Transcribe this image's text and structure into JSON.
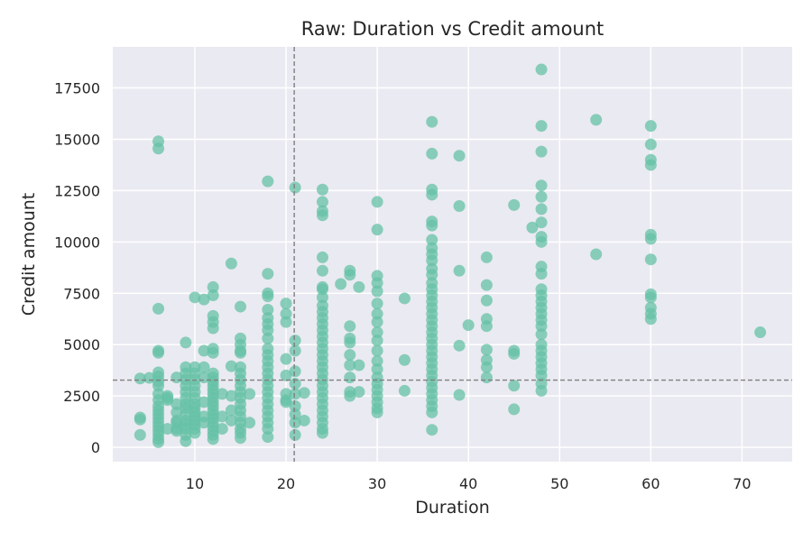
{
  "chart_data": {
    "type": "scatter",
    "title": "Raw: Duration vs Credit amount",
    "xlabel": "Duration",
    "ylabel": "Credit amount",
    "xlim": [
      1,
      75.5
    ],
    "ylim": [
      -700,
      19500
    ],
    "x_ticks": [
      10,
      20,
      30,
      40,
      50,
      60,
      70
    ],
    "y_ticks": [
      0,
      2500,
      5000,
      7500,
      10000,
      12500,
      15000,
      17500
    ],
    "x_tick_labels": [
      "10",
      "20",
      "30",
      "40",
      "50",
      "60",
      "70"
    ],
    "y_tick_labels": [
      "0",
      "2500",
      "5000",
      "7500",
      "10000",
      "12500",
      "15000",
      "17500"
    ],
    "grid": true,
    "legend": "none",
    "colors": {
      "background": "#EAEAF2",
      "grid": "#FFFFFF",
      "point": "#66C2A5",
      "reference_line": "#7F7F7F"
    },
    "reference_lines": {
      "x_mean": 20.9,
      "y_mean": 3271
    },
    "points": [
      [
        4,
        1450
      ],
      [
        4,
        1350
      ],
      [
        4,
        600
      ],
      [
        4,
        3350
      ],
      [
        5,
        3380
      ],
      [
        6,
        14900
      ],
      [
        6,
        14550
      ],
      [
        6,
        6750
      ],
      [
        6,
        4700
      ],
      [
        6,
        4600
      ],
      [
        6,
        3650
      ],
      [
        6,
        3450
      ],
      [
        6,
        3200
      ],
      [
        6,
        3000
      ],
      [
        6,
        2600
      ],
      [
        6,
        2300
      ],
      [
        6,
        2000
      ],
      [
        6,
        1800
      ],
      [
        6,
        1600
      ],
      [
        6,
        1400
      ],
      [
        6,
        1200
      ],
      [
        6,
        1000
      ],
      [
        6,
        800
      ],
      [
        6,
        600
      ],
      [
        6,
        400
      ],
      [
        6,
        250
      ],
      [
        7,
        2400
      ],
      [
        7,
        2500
      ],
      [
        7,
        2300
      ],
      [
        7,
        900
      ],
      [
        8,
        3400
      ],
      [
        8,
        2100
      ],
      [
        8,
        1700
      ],
      [
        8,
        1300
      ],
      [
        8,
        1200
      ],
      [
        8,
        900
      ],
      [
        8,
        800
      ],
      [
        9,
        5100
      ],
      [
        9,
        3900
      ],
      [
        9,
        3600
      ],
      [
        9,
        3300
      ],
      [
        9,
        3000
      ],
      [
        9,
        2700
      ],
      [
        9,
        2400
      ],
      [
        9,
        2100
      ],
      [
        9,
        1900
      ],
      [
        9,
        1600
      ],
      [
        9,
        1300
      ],
      [
        9,
        1100
      ],
      [
        9,
        900
      ],
      [
        9,
        600
      ],
      [
        9,
        300
      ],
      [
        10,
        7300
      ],
      [
        10,
        3900
      ],
      [
        10,
        3600
      ],
      [
        10,
        3300
      ],
      [
        10,
        3000
      ],
      [
        10,
        2700
      ],
      [
        10,
        2400
      ],
      [
        10,
        2100
      ],
      [
        10,
        1900
      ],
      [
        10,
        1700
      ],
      [
        10,
        1500
      ],
      [
        10,
        1300
      ],
      [
        10,
        1100
      ],
      [
        10,
        900
      ],
      [
        10,
        700
      ],
      [
        11,
        7200
      ],
      [
        11,
        4700
      ],
      [
        11,
        3900
      ],
      [
        11,
        3400
      ],
      [
        11,
        2200
      ],
      [
        11,
        1500
      ],
      [
        11,
        1200
      ],
      [
        12,
        7800
      ],
      [
        12,
        7400
      ],
      [
        12,
        6400
      ],
      [
        12,
        6100
      ],
      [
        12,
        5800
      ],
      [
        12,
        4800
      ],
      [
        12,
        4600
      ],
      [
        12,
        3600
      ],
      [
        12,
        3400
      ],
      [
        12,
        3200
      ],
      [
        12,
        3000
      ],
      [
        12,
        2800
      ],
      [
        12,
        2600
      ],
      [
        12,
        2400
      ],
      [
        12,
        2200
      ],
      [
        12,
        2000
      ],
      [
        12,
        1800
      ],
      [
        12,
        1600
      ],
      [
        12,
        1400
      ],
      [
        12,
        1200
      ],
      [
        12,
        1000
      ],
      [
        12,
        800
      ],
      [
        12,
        600
      ],
      [
        12,
        400
      ],
      [
        13,
        2600
      ],
      [
        13,
        1500
      ],
      [
        13,
        900
      ],
      [
        14,
        8950
      ],
      [
        14,
        3950
      ],
      [
        14,
        2500
      ],
      [
        14,
        1800
      ],
      [
        14,
        1300
      ],
      [
        15,
        6850
      ],
      [
        15,
        5300
      ],
      [
        15,
        5000
      ],
      [
        15,
        4700
      ],
      [
        15,
        4600
      ],
      [
        15,
        3900
      ],
      [
        15,
        3600
      ],
      [
        15,
        3300
      ],
      [
        15,
        3000
      ],
      [
        15,
        2700
      ],
      [
        15,
        2400
      ],
      [
        15,
        2100
      ],
      [
        15,
        1800
      ],
      [
        15,
        1500
      ],
      [
        15,
        1200
      ],
      [
        15,
        900
      ],
      [
        15,
        700
      ],
      [
        15,
        450
      ],
      [
        16,
        2600
      ],
      [
        16,
        1200
      ],
      [
        18,
        12950
      ],
      [
        18,
        8450
      ],
      [
        18,
        7500
      ],
      [
        18,
        7350
      ],
      [
        18,
        6700
      ],
      [
        18,
        6300
      ],
      [
        18,
        6000
      ],
      [
        18,
        5700
      ],
      [
        18,
        5300
      ],
      [
        18,
        4800
      ],
      [
        18,
        4500
      ],
      [
        18,
        4200
      ],
      [
        18,
        3900
      ],
      [
        18,
        3600
      ],
      [
        18,
        3300
      ],
      [
        18,
        3000
      ],
      [
        18,
        2700
      ],
      [
        18,
        2400
      ],
      [
        18,
        2100
      ],
      [
        18,
        1800
      ],
      [
        18,
        1500
      ],
      [
        18,
        1200
      ],
      [
        18,
        900
      ],
      [
        18,
        500
      ],
      [
        20,
        7000
      ],
      [
        20,
        6500
      ],
      [
        20,
        6100
      ],
      [
        20,
        4300
      ],
      [
        20,
        3500
      ],
      [
        20,
        2600
      ],
      [
        20,
        2300
      ],
      [
        20,
        2200
      ],
      [
        21,
        5200
      ],
      [
        21,
        4700
      ],
      [
        21,
        3700
      ],
      [
        21,
        3100
      ],
      [
        21,
        2600
      ],
      [
        21,
        2000
      ],
      [
        21,
        1600
      ],
      [
        21,
        1200
      ],
      [
        21,
        600
      ],
      [
        21,
        12650
      ],
      [
        22,
        2650
      ],
      [
        22,
        1300
      ],
      [
        24,
        12550
      ],
      [
        24,
        11950
      ],
      [
        24,
        11500
      ],
      [
        24,
        11300
      ],
      [
        24,
        9250
      ],
      [
        24,
        8600
      ],
      [
        24,
        7800
      ],
      [
        24,
        7700
      ],
      [
        24,
        7300
      ],
      [
        24,
        6900
      ],
      [
        24,
        6600
      ],
      [
        24,
        6300
      ],
      [
        24,
        6000
      ],
      [
        24,
        5700
      ],
      [
        24,
        5400
      ],
      [
        24,
        5100
      ],
      [
        24,
        4800
      ],
      [
        24,
        4500
      ],
      [
        24,
        4200
      ],
      [
        24,
        3900
      ],
      [
        24,
        3600
      ],
      [
        24,
        3300
      ],
      [
        24,
        3000
      ],
      [
        24,
        2700
      ],
      [
        24,
        2400
      ],
      [
        24,
        2100
      ],
      [
        24,
        1800
      ],
      [
        24,
        1500
      ],
      [
        24,
        1200
      ],
      [
        24,
        900
      ],
      [
        24,
        700
      ],
      [
        26,
        7950
      ],
      [
        27,
        8600
      ],
      [
        27,
        8400
      ],
      [
        27,
        5900
      ],
      [
        27,
        5300
      ],
      [
        27,
        5100
      ],
      [
        27,
        4500
      ],
      [
        27,
        4000
      ],
      [
        27,
        3400
      ],
      [
        27,
        2700
      ],
      [
        27,
        2500
      ],
      [
        28,
        7800
      ],
      [
        28,
        4000
      ],
      [
        28,
        2700
      ],
      [
        30,
        11950
      ],
      [
        30,
        10600
      ],
      [
        30,
        8350
      ],
      [
        30,
        8000
      ],
      [
        30,
        7600
      ],
      [
        30,
        7000
      ],
      [
        30,
        6500
      ],
      [
        30,
        6100
      ],
      [
        30,
        5600
      ],
      [
        30,
        5200
      ],
      [
        30,
        4700
      ],
      [
        30,
        4200
      ],
      [
        30,
        3800
      ],
      [
        30,
        3400
      ],
      [
        30,
        3100
      ],
      [
        30,
        2800
      ],
      [
        30,
        2500
      ],
      [
        30,
        2200
      ],
      [
        30,
        1900
      ],
      [
        30,
        1700
      ],
      [
        33,
        7250
      ],
      [
        33,
        4250
      ],
      [
        33,
        2750
      ],
      [
        36,
        15850
      ],
      [
        36,
        14300
      ],
      [
        36,
        12550
      ],
      [
        36,
        12300
      ],
      [
        36,
        11000
      ],
      [
        36,
        10800
      ],
      [
        36,
        10100
      ],
      [
        36,
        9700
      ],
      [
        36,
        9400
      ],
      [
        36,
        9100
      ],
      [
        36,
        8700
      ],
      [
        36,
        8400
      ],
      [
        36,
        8000
      ],
      [
        36,
        7700
      ],
      [
        36,
        7400
      ],
      [
        36,
        7100
      ],
      [
        36,
        6800
      ],
      [
        36,
        6500
      ],
      [
        36,
        6200
      ],
      [
        36,
        5900
      ],
      [
        36,
        5600
      ],
      [
        36,
        5300
      ],
      [
        36,
        5000
      ],
      [
        36,
        4700
      ],
      [
        36,
        4400
      ],
      [
        36,
        4100
      ],
      [
        36,
        3800
      ],
      [
        36,
        3500
      ],
      [
        36,
        3200
      ],
      [
        36,
        2900
      ],
      [
        36,
        2600
      ],
      [
        36,
        2300
      ],
      [
        36,
        2000
      ],
      [
        36,
        1700
      ],
      [
        36,
        850
      ],
      [
        39,
        14200
      ],
      [
        39,
        11750
      ],
      [
        39,
        8600
      ],
      [
        39,
        4950
      ],
      [
        39,
        2550
      ],
      [
        40,
        5950
      ],
      [
        42,
        9250
      ],
      [
        42,
        7900
      ],
      [
        42,
        7150
      ],
      [
        42,
        6250
      ],
      [
        42,
        5900
      ],
      [
        42,
        4750
      ],
      [
        42,
        4250
      ],
      [
        42,
        3900
      ],
      [
        42,
        3400
      ],
      [
        45,
        11800
      ],
      [
        45,
        4700
      ],
      [
        45,
        4550
      ],
      [
        45,
        3000
      ],
      [
        45,
        1850
      ],
      [
        47,
        10700
      ],
      [
        48,
        18400
      ],
      [
        48,
        15650
      ],
      [
        48,
        14400
      ],
      [
        48,
        12750
      ],
      [
        48,
        12200
      ],
      [
        48,
        11600
      ],
      [
        48,
        10950
      ],
      [
        48,
        10250
      ],
      [
        48,
        10000
      ],
      [
        48,
        8800
      ],
      [
        48,
        8450
      ],
      [
        48,
        7700
      ],
      [
        48,
        7400
      ],
      [
        48,
        7100
      ],
      [
        48,
        6800
      ],
      [
        48,
        6500
      ],
      [
        48,
        6200
      ],
      [
        48,
        5900
      ],
      [
        48,
        5500
      ],
      [
        48,
        5000
      ],
      [
        48,
        4700
      ],
      [
        48,
        4400
      ],
      [
        48,
        4100
      ],
      [
        48,
        3800
      ],
      [
        48,
        3500
      ],
      [
        48,
        3100
      ],
      [
        48,
        2750
      ],
      [
        54,
        15950
      ],
      [
        54,
        9400
      ],
      [
        60,
        15650
      ],
      [
        60,
        14750
      ],
      [
        60,
        14000
      ],
      [
        60,
        13750
      ],
      [
        60,
        10350
      ],
      [
        60,
        10150
      ],
      [
        60,
        9150
      ],
      [
        60,
        7450
      ],
      [
        60,
        7300
      ],
      [
        60,
        6800
      ],
      [
        60,
        6500
      ],
      [
        60,
        6250
      ],
      [
        72,
        5600
      ]
    ]
  }
}
